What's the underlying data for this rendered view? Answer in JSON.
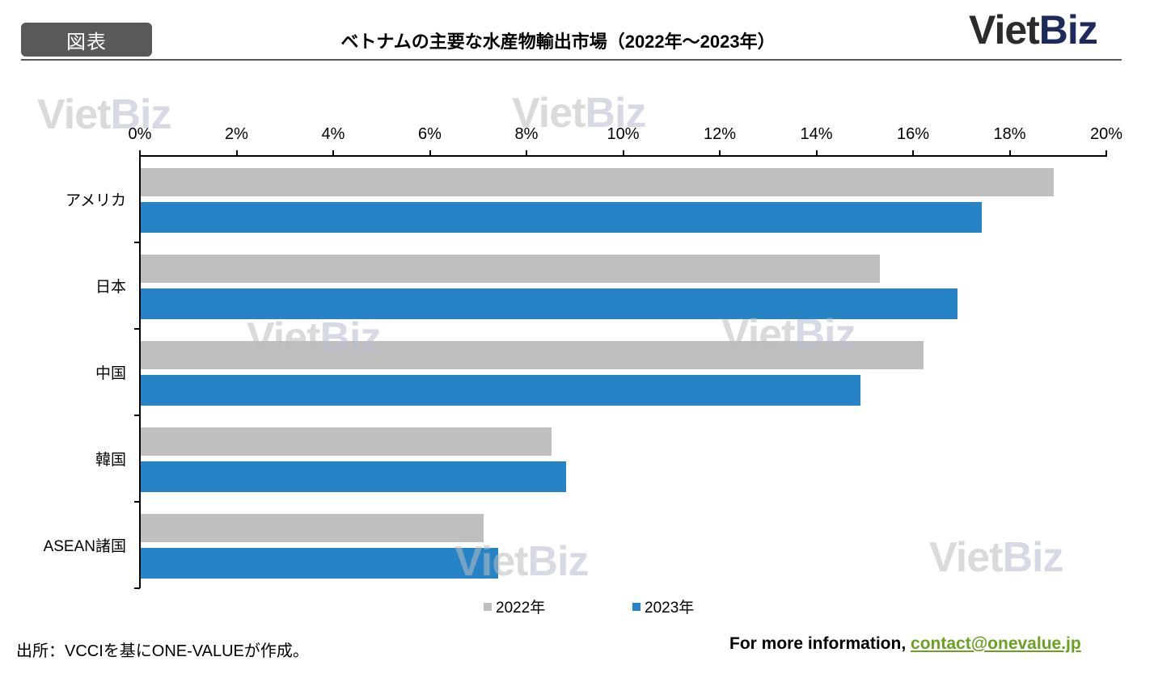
{
  "header": {
    "badge": "図表",
    "title": "ベトナムの主要な水産物輸出市場（2022年～2023年）",
    "logo": {
      "part1": "Viet",
      "part2": "Biz"
    }
  },
  "watermark": {
    "part1": "Viet",
    "part2": "Biz"
  },
  "chart_data": {
    "type": "bar",
    "orientation": "horizontal",
    "title": "ベトナムの主要な水産物輸出市場（2022年～2023年）",
    "categories": [
      "アメリカ",
      "日本",
      "中国",
      "韓国",
      "ASEAN諸国"
    ],
    "series": [
      {
        "name": "2022年",
        "color": "#bfbfbf",
        "values": [
          18.9,
          15.3,
          16.2,
          8.5,
          7.1
        ]
      },
      {
        "name": "2023年",
        "color": "#2583c6",
        "values": [
          17.4,
          16.9,
          14.9,
          8.8,
          7.4
        ]
      }
    ],
    "xlabel": "",
    "ylabel": "",
    "xlim": [
      0,
      20
    ],
    "x_ticks": [
      "0%",
      "2%",
      "4%",
      "6%",
      "8%",
      "10%",
      "12%",
      "14%",
      "16%",
      "18%",
      "20%"
    ],
    "x_axis_position": "top",
    "grid": false,
    "legend_position": "bottom"
  },
  "legend": {
    "items": [
      "2022年",
      "2023年"
    ]
  },
  "footer": {
    "source": "出所：VCCIを基にONE-VALUEが作成。",
    "contact_prefix": "For more information, ",
    "contact_email": "contact@onevalue.jp"
  }
}
